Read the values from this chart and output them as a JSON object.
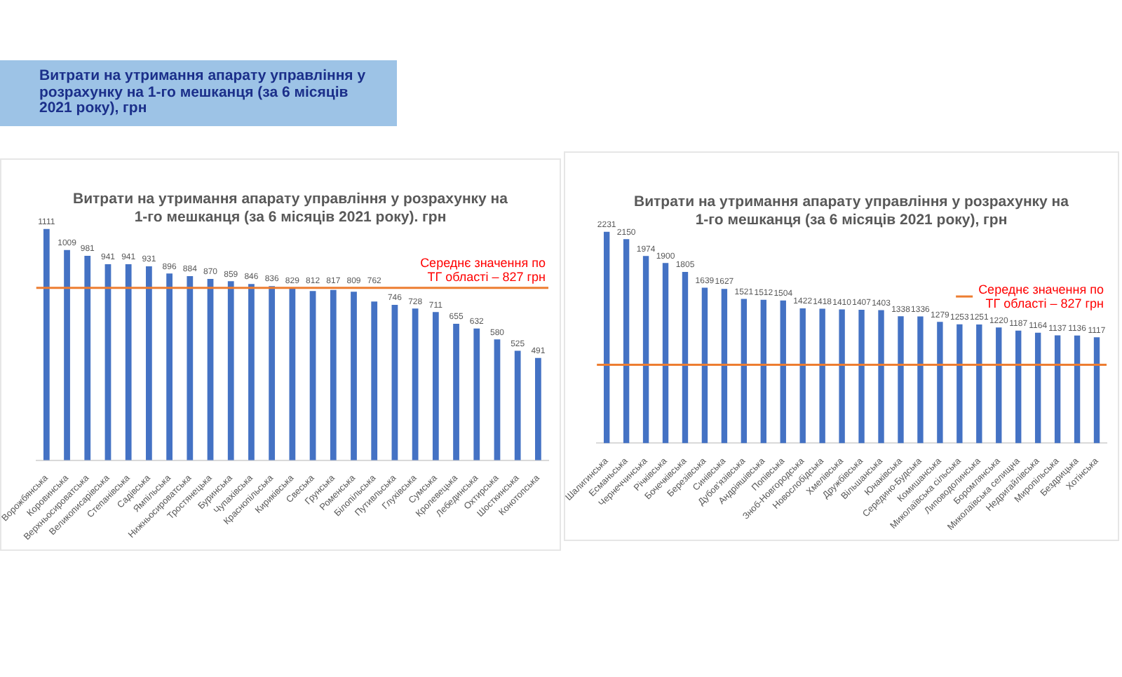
{
  "chart_data": [
    {
      "type": "other",
      "title": "Витрати на утримання апарату управління у розрахунку на 1-го мешканця (за 6 місяців 2021 року), грн"
    },
    {
      "type": "bar",
      "title": "Витрати на утримання апарату управління у розрахунку на 1-го мешканця (за 6 місяців 2021 року). грн",
      "categories": [
        "Ворожбянська",
        "Коровинська",
        "Верхньосироватська",
        "Великописарівська",
        "Степанівська",
        "Садівська",
        "Ямпільська",
        "Нижньосироватська",
        "Тростянецька",
        "Буринська",
        "Чупахівська",
        "Краснопільська",
        "Кириківська",
        "Свеська",
        "Грунська",
        "Роменська",
        "Білопільська",
        "Путивльська",
        "Глухівська",
        "Сумська",
        "Кролевецька",
        "Лебединська",
        "Охтирська",
        "Шосткинська",
        "Конотопська"
      ],
      "values": [
        1111,
        1009,
        981,
        941,
        941,
        931,
        896,
        884,
        870,
        859,
        846,
        836,
        829,
        812,
        817,
        809,
        762,
        746,
        728,
        711,
        655,
        632,
        580,
        525,
        491
      ],
      "color": "#4472c4",
      "data_labels": true,
      "tick_labels": "x",
      "ref_lines": [
        {
          "axis": "y",
          "value": 827,
          "label": "Середнє значення по ТГ області – 827 грн",
          "color": "#ed7d31"
        }
      ]
    },
    {
      "type": "bar",
      "title": "Витрати на утримання апарату управління у розрахунку на 1-го мешканця (за 6 місяців 2021 року), грн",
      "categories": [
        "Шалигинська",
        "Есманьська",
        "Чернеччинська",
        "Річківська",
        "Бочечківська",
        "Березівська",
        "Синівська",
        "Дубов'язівська",
        "Андріяшівська",
        "Попівська",
        "Зноб-Новгородська",
        "Новослобідська",
        "Хмелівська",
        "Дружбівська",
        "Вільшанська",
        "Юнаківська",
        "Середино-Будська",
        "Комишанська",
        "Миколаївська сільська",
        "Липоводолинська",
        "Боромлянська",
        "Миколаївська селищна",
        "Недригайлівська",
        "Миропільська",
        "Бездрицька",
        "Хотінська"
      ],
      "values": [
        2231,
        2150,
        1974,
        1900,
        1805,
        1639,
        1627,
        1521,
        1512,
        1504,
        1422,
        1418,
        1410,
        1407,
        1403,
        1338,
        1336,
        1279,
        1253,
        1251,
        1220,
        1187,
        1164,
        1137,
        1136,
        1117
      ],
      "color": "#4472c4",
      "data_labels": true,
      "tick_labels": "x",
      "ref_lines": [
        {
          "axis": "y",
          "value": 827,
          "label": "Середнє значення по ТГ області – 827 грн",
          "color": "#ed7d31"
        }
      ]
    }
  ]
}
